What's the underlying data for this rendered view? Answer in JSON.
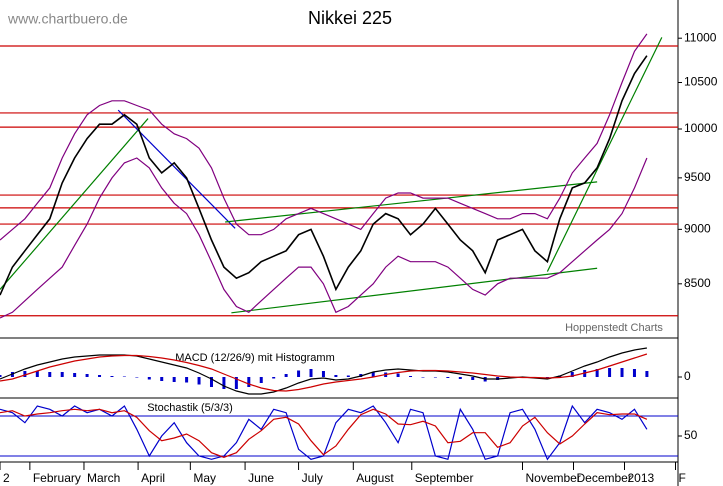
{
  "chart_data": [
    {
      "type": "line",
      "title": "Nikkei 225",
      "annotations": [
        "www.chartbuero.de",
        "Hoppenstedt Charts"
      ],
      "log": true,
      "xlim": [
        0,
        54.5
      ],
      "ylim": [
        8030,
        11450
      ],
      "xticks": [
        {
          "value": 0,
          "label": "2"
        },
        {
          "value": 2.4,
          "label": "February"
        },
        {
          "value": 6.75,
          "label": "March"
        },
        {
          "value": 11.1,
          "label": "April"
        },
        {
          "value": 15.3,
          "label": "May"
        },
        {
          "value": 19.7,
          "label": "June"
        },
        {
          "value": 24,
          "label": "July"
        },
        {
          "value": 28.4,
          "label": "August"
        },
        {
          "value": 33.1,
          "label": "September"
        },
        {
          "value": 42,
          "label": "November"
        },
        {
          "value": 46.1,
          "label": "December"
        },
        {
          "value": 50.2,
          "label": "2013"
        },
        {
          "value": 54.3,
          "label": "F"
        }
      ],
      "yticks": [
        8500,
        9000,
        9500,
        10000,
        10500,
        11000
      ],
      "x": [
        0,
        1,
        2,
        3,
        4,
        5,
        6,
        7,
        8,
        9,
        10,
        11,
        12,
        13,
        14,
        15,
        16,
        17,
        18,
        19,
        20,
        21,
        22,
        23,
        24,
        25,
        26,
        27,
        28,
        29,
        30,
        31,
        32,
        33,
        34,
        35,
        36,
        37,
        38,
        39,
        40,
        41,
        42,
        43,
        44,
        45,
        46,
        47,
        48,
        49,
        50,
        51,
        52
      ],
      "series": [
        {
          "color": "#000000",
          "values": [
            8400,
            8650,
            8800,
            8950,
            9100,
            9450,
            9700,
            9900,
            10050,
            10050,
            10150,
            10050,
            9700,
            9550,
            9650,
            9500,
            9200,
            8900,
            8650,
            8550,
            8600,
            8700,
            8750,
            8800,
            8950,
            9000,
            8750,
            8450,
            8650,
            8800,
            9050,
            9150,
            9100,
            8950,
            9050,
            9200,
            9050,
            8900,
            8800,
            8600,
            8900,
            8950,
            9000,
            8800,
            8700,
            9100,
            9400,
            9450,
            9600,
            9900,
            10300,
            10600,
            10800
          ]
        },
        {
          "color": "#800080",
          "values": [
            8900,
            9000,
            9100,
            9250,
            9400,
            9700,
            9950,
            10150,
            10250,
            10300,
            10300,
            10250,
            10200,
            10050,
            9950,
            9900,
            9800,
            9600,
            9300,
            9050,
            8950,
            8950,
            9000,
            9100,
            9150,
            9200,
            9150,
            9100,
            9050,
            9000,
            9150,
            9300,
            9350,
            9350,
            9300,
            9300,
            9300,
            9250,
            9200,
            9150,
            9100,
            9100,
            9150,
            9150,
            9100,
            9300,
            9550,
            9700,
            9850,
            10150,
            10500,
            10850,
            11050
          ]
        },
        {
          "color": "#800080",
          "values": [
            8200,
            8250,
            8350,
            8450,
            8550,
            8650,
            8850,
            9050,
            9300,
            9500,
            9650,
            9700,
            9600,
            9400,
            9250,
            9150,
            8950,
            8700,
            8450,
            8300,
            8250,
            8350,
            8450,
            8550,
            8650,
            8650,
            8500,
            8250,
            8300,
            8400,
            8500,
            8650,
            8750,
            8700,
            8700,
            8700,
            8650,
            8550,
            8450,
            8400,
            8500,
            8550,
            8550,
            8550,
            8550,
            8600,
            8700,
            8800,
            8900,
            9000,
            9150,
            9400,
            9700
          ]
        }
      ],
      "hlines": [
        10910,
        10170,
        10020,
        9330,
        9205,
        9050,
        8220
      ],
      "hline_color": "#cc0000",
      "trend_lines": [
        {
          "x": [
            0,
            11.9
          ],
          "y": [
            8450,
            10110
          ],
          "color": "#008000"
        },
        {
          "x": [
            9.5,
            18.9
          ],
          "y": [
            10200,
            9010
          ],
          "color": "#0000cc"
        },
        {
          "x": [
            18.6,
            48
          ],
          "y": [
            8245,
            8640
          ],
          "color": "#008000"
        },
        {
          "x": [
            18.1,
            48
          ],
          "y": [
            9070,
            9460
          ],
          "color": "#008000"
        },
        {
          "x": [
            44,
            53.2
          ],
          "y": [
            8610,
            11010
          ],
          "color": "#008000"
        }
      ]
    },
    {
      "type": "line",
      "title": "MACD (12/26/9) mit Histogramm",
      "ylim": [
        -210,
        370
      ],
      "yticks": [
        0
      ],
      "x": [
        0,
        1,
        2,
        3,
        4,
        5,
        6,
        7,
        8,
        9,
        10,
        11,
        12,
        13,
        14,
        15,
        16,
        17,
        18,
        19,
        20,
        21,
        22,
        23,
        24,
        25,
        26,
        27,
        28,
        29,
        30,
        31,
        32,
        33,
        34,
        35,
        36,
        37,
        38,
        39,
        40,
        41,
        42,
        43,
        44,
        45,
        46,
        47,
        48,
        49,
        50,
        51,
        52
      ],
      "series": [
        {
          "color": "#000000",
          "values": [
            -20,
            30,
            80,
            120,
            150,
            180,
            200,
            210,
            220,
            220,
            220,
            210,
            180,
            150,
            120,
            90,
            40,
            -20,
            -90,
            -140,
            -170,
            -170,
            -150,
            -110,
            -60,
            -20,
            -10,
            -30,
            -20,
            10,
            50,
            70,
            80,
            70,
            60,
            60,
            50,
            30,
            10,
            -20,
            -20,
            -10,
            0,
            -10,
            -20,
            10,
            60,
            110,
            150,
            200,
            240,
            270,
            290
          ]
        },
        {
          "color": "#cc0000",
          "values": [
            -40,
            -20,
            20,
            60,
            100,
            130,
            160,
            180,
            200,
            210,
            215,
            215,
            205,
            190,
            170,
            145,
            115,
            80,
            30,
            -20,
            -70,
            -110,
            -135,
            -140,
            -125,
            -100,
            -70,
            -50,
            -35,
            -20,
            0,
            25,
            45,
            60,
            65,
            65,
            60,
            50,
            40,
            25,
            10,
            0,
            -5,
            -5,
            -10,
            -5,
            10,
            40,
            70,
            110,
            150,
            190,
            230
          ]
        }
      ],
      "histogram": [
        20,
        50,
        60,
        60,
        50,
        50,
        40,
        30,
        20,
        10,
        5,
        -5,
        -25,
        -40,
        -50,
        -55,
        -75,
        -100,
        -120,
        -120,
        -100,
        -60,
        -15,
        30,
        65,
        80,
        60,
        20,
        15,
        30,
        50,
        45,
        35,
        10,
        -5,
        -5,
        -10,
        -20,
        -30,
        -45,
        -30,
        -10,
        5,
        -5,
        -10,
        15,
        50,
        70,
        80,
        90,
        90,
        80,
        60
      ],
      "histogram_color": "#0000cc"
    },
    {
      "type": "line",
      "title": "Stochastik (5/3/3)",
      "ylim": [
        11,
        104
      ],
      "yticks": [
        50
      ],
      "levels": [
        80,
        20
      ],
      "level_color": "#0000cc",
      "x": [
        0,
        1,
        2,
        3,
        4,
        5,
        6,
        7,
        8,
        9,
        10,
        11,
        12,
        13,
        14,
        15,
        16,
        17,
        18,
        19,
        20,
        21,
        22,
        23,
        24,
        25,
        26,
        27,
        28,
        29,
        30,
        31,
        32,
        33,
        34,
        35,
        36,
        37,
        38,
        39,
        40,
        41,
        42,
        43,
        44,
        45,
        46,
        47,
        48,
        49,
        50,
        51,
        52
      ],
      "series": [
        {
          "color": "#0000cc",
          "values": [
            90,
            85,
            70,
            95,
            90,
            80,
            95,
            85,
            90,
            80,
            95,
            60,
            20,
            50,
            70,
            40,
            20,
            15,
            20,
            40,
            75,
            60,
            90,
            85,
            30,
            15,
            20,
            70,
            90,
            85,
            95,
            70,
            40,
            90,
            85,
            20,
            15,
            90,
            60,
            15,
            20,
            85,
            90,
            60,
            15,
            40,
            95,
            70,
            90,
            85,
            75,
            90,
            60
          ]
        },
        {
          "color": "#cc0000",
          "values": [
            85,
            88,
            80,
            83,
            85,
            88,
            90,
            88,
            90,
            85,
            88,
            78,
            58,
            43,
            47,
            53,
            43,
            25,
            18,
            25,
            45,
            58,
            75,
            78,
            68,
            43,
            22,
            35,
            60,
            82,
            90,
            83,
            68,
            67,
            72,
            65,
            40,
            42,
            55,
            55,
            33,
            40,
            65,
            78,
            55,
            38,
            50,
            68,
            85,
            82,
            83,
            83,
            75
          ]
        }
      ]
    }
  ]
}
